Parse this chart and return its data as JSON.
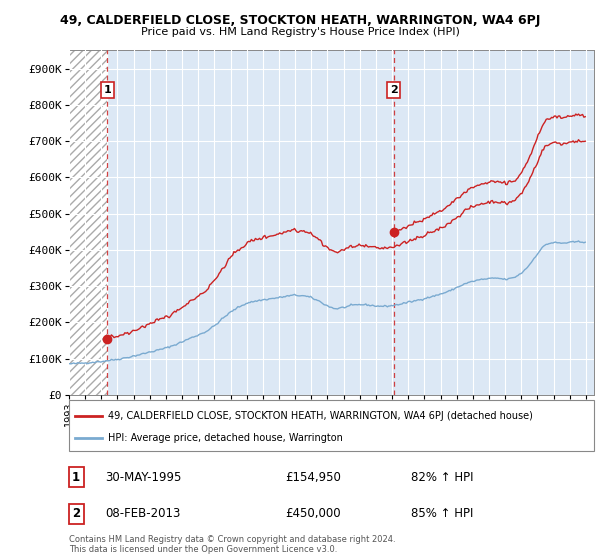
{
  "title_line1": "49, CALDERFIELD CLOSE, STOCKTON HEATH, WARRINGTON, WA4 6PJ",
  "title_line2": "Price paid vs. HM Land Registry's House Price Index (HPI)",
  "legend_label1": "49, CALDERFIELD CLOSE, STOCKTON HEATH, WARRINGTON, WA4 6PJ (detached house)",
  "legend_label2": "HPI: Average price, detached house, Warrington",
  "sale1_label": "1",
  "sale1_date": "30-MAY-1995",
  "sale1_price": "£154,950",
  "sale1_hpi": "82% ↑ HPI",
  "sale2_label": "2",
  "sale2_date": "08-FEB-2013",
  "sale2_price": "£450,000",
  "sale2_hpi": "85% ↑ HPI",
  "copyright_text": "Contains HM Land Registry data © Crown copyright and database right 2024.\nThis data is licensed under the Open Government Licence v3.0.",
  "hpi_line_color": "#7aaad0",
  "price_line_color": "#cc2222",
  "marker_color": "#cc2222",
  "dashed_line_color": "#cc2222",
  "sale1_x": 1995.37,
  "sale1_y": 154950,
  "sale2_x": 2013.1,
  "sale2_y": 450000,
  "ylim": [
    0,
    950000
  ],
  "xlim_start": 1993.0,
  "xlim_end": 2025.5,
  "yticks": [
    0,
    100000,
    200000,
    300000,
    400000,
    500000,
    600000,
    700000,
    800000,
    900000
  ],
  "ytick_labels": [
    "£0",
    "£100K",
    "£200K",
    "£300K",
    "£400K",
    "£500K",
    "£600K",
    "£700K",
    "£800K",
    "£900K"
  ],
  "xtick_years": [
    1993,
    1994,
    1995,
    1996,
    1997,
    1998,
    1999,
    2000,
    2001,
    2002,
    2003,
    2004,
    2005,
    2006,
    2007,
    2008,
    2009,
    2010,
    2011,
    2012,
    2013,
    2014,
    2015,
    2016,
    2017,
    2018,
    2019,
    2020,
    2021,
    2022,
    2023,
    2024,
    2025
  ]
}
